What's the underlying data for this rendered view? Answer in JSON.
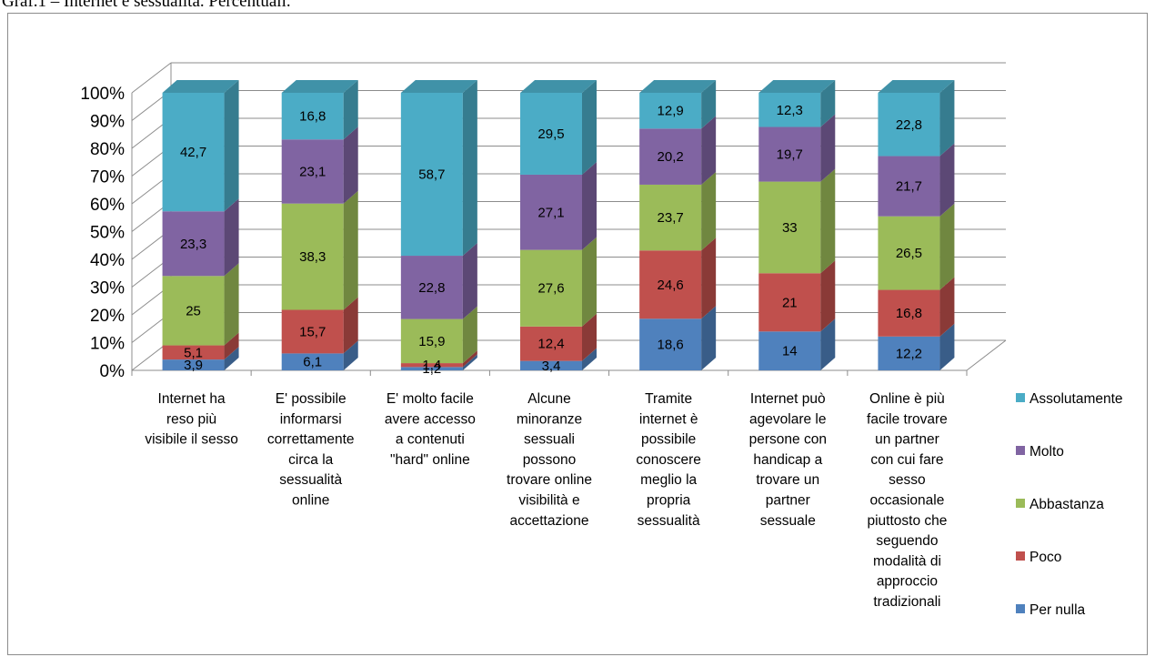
{
  "caption": "Graf.1 – Internet e sessualità. Percentuali.",
  "chart_data": {
    "type": "bar",
    "stacked": true,
    "percent_stacked": true,
    "three_d": true,
    "yticks": [
      "0%",
      "10%",
      "20%",
      "30%",
      "40%",
      "50%",
      "60%",
      "70%",
      "80%",
      "90%",
      "100%"
    ],
    "ylim": [
      0,
      100
    ],
    "grid": true,
    "legend_position": "right",
    "categories": [
      [
        "Internet ha",
        "reso più",
        "visibile il sesso"
      ],
      [
        "E' possibile",
        "informarsi",
        "correttamente",
        "circa la",
        "sessualità",
        "online"
      ],
      [
        "E' molto facile",
        "avere accesso",
        "a contenuti",
        "\"hard\" online"
      ],
      [
        "Alcune",
        "minoranze",
        "sessuali",
        "possono",
        "trovare online",
        "visibilità e",
        "accettazione"
      ],
      [
        "Tramite",
        "internet è",
        "possibile",
        "conoscere",
        "meglio la",
        "propria",
        "sessualità"
      ],
      [
        "Internet può",
        "agevolare le",
        "persone con",
        "handicap a",
        "trovare un",
        "partner",
        "sessuale"
      ],
      [
        "Online è più",
        "facile trovare",
        "un partner",
        "con cui fare",
        "sesso",
        "occasionale",
        "piuttosto che",
        "seguendo",
        "modalità di",
        "approccio",
        "tradizionali"
      ]
    ],
    "series": [
      {
        "name": "Per nulla",
        "color": "#4f81bd",
        "values": [
          3.9,
          6.1,
          1.2,
          3.4,
          18.6,
          14,
          12.2
        ],
        "labels": [
          "3,9",
          "6,1",
          "1,2",
          "3,4",
          "18,6",
          "14",
          "12,2"
        ]
      },
      {
        "name": "Poco",
        "color": "#c0504d",
        "values": [
          5.1,
          15.7,
          1.4,
          12.4,
          24.6,
          21,
          16.8
        ],
        "labels": [
          "5,1",
          "15,7",
          "1,4",
          "12,4",
          "24,6",
          "21",
          "16,8"
        ]
      },
      {
        "name": "Abbastanza",
        "color": "#9bbb59",
        "values": [
          25,
          38.3,
          15.9,
          27.6,
          23.7,
          33,
          26.5
        ],
        "labels": [
          "25",
          "38,3",
          "15,9",
          "27,6",
          "23,7",
          "33",
          "26,5"
        ]
      },
      {
        "name": "Molto",
        "color": "#8064a2",
        "values": [
          23.3,
          23.1,
          22.8,
          27.1,
          20.2,
          19.7,
          21.7
        ],
        "labels": [
          "23,3",
          "23,1",
          "22,8",
          "27,1",
          "20,2",
          "19,7",
          "21,7"
        ]
      },
      {
        "name": "Assolutamente",
        "color": "#4bacc6",
        "values": [
          42.7,
          16.8,
          58.7,
          29.5,
          12.9,
          12.3,
          22.8
        ],
        "labels": [
          "42,7",
          "16,8",
          "58,7",
          "29,5",
          "12,9",
          "12,3",
          "22,8"
        ]
      }
    ]
  }
}
